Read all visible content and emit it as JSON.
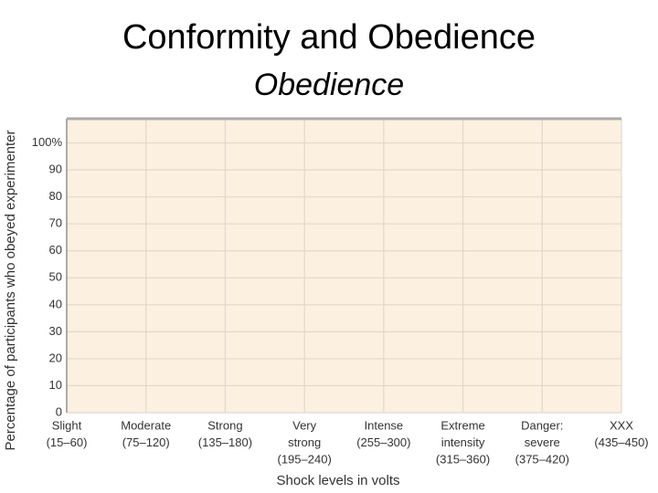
{
  "chart_data": {
    "type": "line",
    "title": "Conformity and Obedience",
    "subtitle": "Obedience",
    "x_label": "Shock levels in volts",
    "y_label": "Percentage of participants who obeyed experimenter",
    "categories": [
      [
        "Slight",
        "(15–60)"
      ],
      [
        "Moderate",
        "(75–120)"
      ],
      [
        "Strong",
        "(135–180)"
      ],
      [
        "Very",
        "strong",
        "(195–240)"
      ],
      [
        "Intense",
        "(255–300)"
      ],
      [
        "Extreme",
        "intensity",
        "(315–360)"
      ],
      [
        "Danger:",
        "severe",
        "(375–420)"
      ],
      [
        "XXX",
        "(435–450)"
      ]
    ],
    "series": [],
    "ylim": [
      0,
      109
    ],
    "yticks": [
      0,
      10,
      20,
      30,
      40,
      50,
      60,
      70,
      80,
      90,
      {
        "value": 100,
        "label": "100%"
      }
    ],
    "grid": true
  }
}
